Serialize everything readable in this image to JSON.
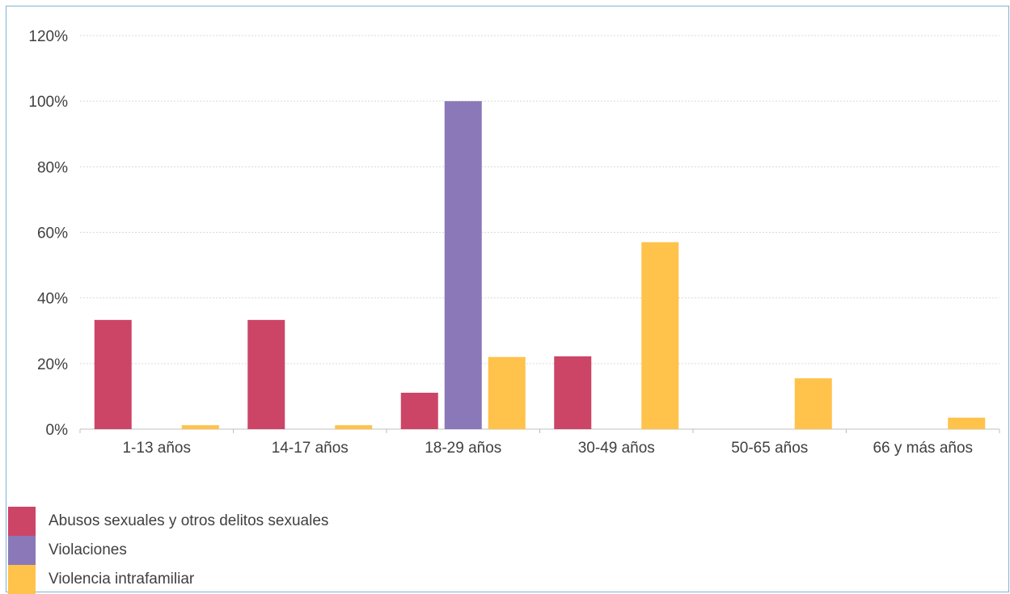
{
  "chart_data": {
    "type": "bar",
    "categories": [
      "1-13 años",
      "14-17 años",
      "18-29 años",
      "30-49 años",
      "50-65 años",
      "66 y más años"
    ],
    "series": [
      {
        "name": "Abusos sexuales y otros delitos sexuales",
        "color": "#cc4566",
        "values": [
          33.3,
          33.3,
          11.1,
          22.2,
          0,
          0
        ]
      },
      {
        "name": "Violaciones",
        "color": "#8a78b8",
        "values": [
          0,
          0,
          100,
          0,
          0,
          0
        ]
      },
      {
        "name": "Violencia intrafamiliar",
        "color": "#ffc24a",
        "values": [
          1.2,
          1.2,
          22,
          57,
          15.5,
          3.5
        ]
      }
    ],
    "yticks": [
      "0%",
      "20%",
      "40%",
      "60%",
      "80%",
      "100%",
      "120%"
    ],
    "ylim": [
      0,
      120
    ],
    "grid": true,
    "legend_position": "bottom-left",
    "title": "",
    "xlabel": "",
    "ylabel": ""
  }
}
